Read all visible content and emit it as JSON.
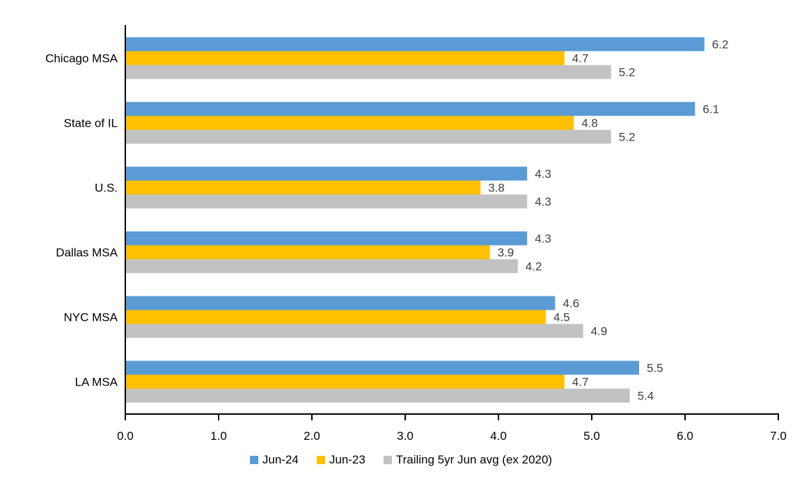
{
  "chart_data": {
    "type": "bar",
    "orientation": "horizontal",
    "title": "",
    "xlabel": "",
    "ylabel": "",
    "categories": [
      "Chicago MSA",
      "State of IL",
      "U.S.",
      "Dallas MSA",
      "NYC MSA",
      "LA MSA"
    ],
    "series": [
      {
        "name": "Jun-24",
        "color": "#5B9BD5",
        "values": [
          6.2,
          6.1,
          4.3,
          4.3,
          4.6,
          5.5
        ]
      },
      {
        "name": "Jun-23",
        "color": "#FFC000",
        "values": [
          4.7,
          4.8,
          3.8,
          3.9,
          4.5,
          4.7
        ]
      },
      {
        "name": "Trailing 5yr Jun avg (ex 2020)",
        "color": "#C2C2C2",
        "values": [
          5.2,
          5.2,
          4.3,
          4.2,
          4.9,
          5.4
        ]
      }
    ],
    "data_labels_shown": true,
    "data_label_decimals": 1,
    "x_axis": {
      "min": 0.0,
      "max": 7.0,
      "tick_step": 1.0,
      "tick_labels": [
        "0.0",
        "1.0",
        "2.0",
        "3.0",
        "4.0",
        "5.0",
        "6.0",
        "7.0"
      ]
    },
    "grid": false,
    "legend_position": "bottom"
  },
  "colors": {
    "axis_line": "#000000",
    "tick_label_text": "#000000",
    "category_label_text": "#000000",
    "data_label_text": "#404040",
    "legend_text": "#000000",
    "background": "#FFFFFF"
  }
}
